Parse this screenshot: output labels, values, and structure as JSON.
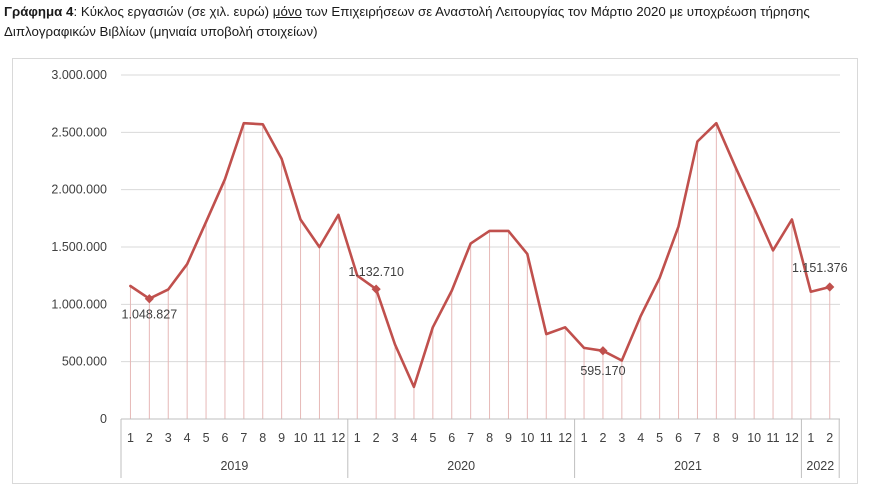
{
  "caption": {
    "lead": "Γράφημα 4",
    "part1": ": Κύκλος εργασιών (σε χιλ. ευρώ) ",
    "emphasis": "μόνο",
    "part2": " των Επιχειρήσεων σε Αναστολή Λειτουργίας τον Μάρτιο 2020 με υποχρέωση τήρησης Διπλογραφικών Βιβλίων  (μηνιαία υποβολή στοιχείων)"
  },
  "chart_data": {
    "type": "line",
    "title": "",
    "xlabel": "",
    "ylabel": "",
    "ylim": [
      0,
      3000000
    ],
    "y_ticks": [
      0,
      500000,
      1000000,
      1500000,
      2000000,
      2500000,
      3000000
    ],
    "y_tick_labels": [
      "0",
      "500.000",
      "1.000.000",
      "1.500.000",
      "2.000.000",
      "2.500.000",
      "3.000.000"
    ],
    "grid": "horizontal",
    "drop_lines": true,
    "line_color": "#c0504d",
    "drop_line_color": "#e6b8b7",
    "grid_color": "#d9d9d9",
    "axis_color": "#bfbfbf",
    "groups": [
      {
        "label": "2019",
        "months": [
          "1",
          "2",
          "3",
          "4",
          "5",
          "6",
          "7",
          "8",
          "9",
          "10",
          "11",
          "12"
        ]
      },
      {
        "label": "2020",
        "months": [
          "1",
          "2",
          "3",
          "4",
          "5",
          "6",
          "7",
          "8",
          "9",
          "10",
          "11",
          "12"
        ]
      },
      {
        "label": "2021",
        "months": [
          "1",
          "2",
          "3",
          "4",
          "5",
          "6",
          "7",
          "8",
          "9",
          "10",
          "11",
          "12"
        ]
      },
      {
        "label": "2022",
        "months": [
          "1",
          "2"
        ]
      }
    ],
    "series": [
      {
        "values": [
          1160000,
          1048827,
          1130000,
          1350000,
          1720000,
          2090000,
          2580000,
          2570000,
          2270000,
          1740000,
          1500000,
          1780000,
          1250000,
          1132710,
          650000,
          280000,
          800000,
          1120000,
          1530000,
          1640000,
          1640000,
          1440000,
          740000,
          800000,
          620000,
          595170,
          510000,
          900000,
          1230000,
          1680000,
          2420000,
          2580000,
          2200000,
          1840000,
          1470000,
          1740000,
          1110000,
          1151376
        ],
        "markers": [
          {
            "index": 1,
            "label": "1.048.827"
          },
          {
            "index": 13,
            "label": "1.132.710"
          },
          {
            "index": 25,
            "label": "595.170"
          },
          {
            "index": 37,
            "label": "1.151.376"
          }
        ]
      }
    ]
  }
}
